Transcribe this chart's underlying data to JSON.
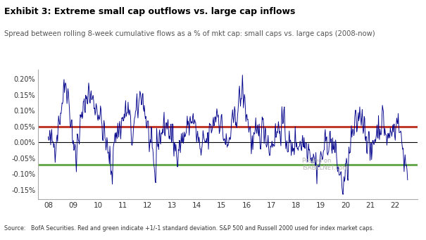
{
  "title_bold": "Exhibit 3: Extreme small cap outflows vs. large cap inflows",
  "title_sub": "Spread between rolling 8-week cumulative flows as a % of mkt cap: small caps vs. large caps (2008-now)",
  "source_text": "Source:   BofA Securities. Red and green indicate +1/-1 standard deviation. S&P 500 and Russell 2000 used for index market caps.",
  "red_line": 0.0005,
  "green_line": -0.0007,
  "ylim": [
    -0.0018,
    0.0023
  ],
  "yticks": [
    -0.0015,
    -0.001,
    -0.0005,
    0.0,
    0.0005,
    0.001,
    0.0015,
    0.002
  ],
  "ytick_labels": [
    "-0.15%",
    "-0.10%",
    "-0.05%",
    "0.00%",
    "0.05%",
    "0.10%",
    "0.15%",
    "0.20%"
  ],
  "xtick_labels": [
    "08",
    "09",
    "10",
    "11",
    "12",
    "13",
    "14",
    "15",
    "16",
    "17",
    "18",
    "19",
    "20",
    "21",
    "22"
  ],
  "line_color": "#00008B",
  "red_color": "#C0392B",
  "green_color": "#6aaa50",
  "background_color": "#ffffff",
  "watermark": "Posted on\nISABELNET.com",
  "seed": 42,
  "n_points": 730
}
